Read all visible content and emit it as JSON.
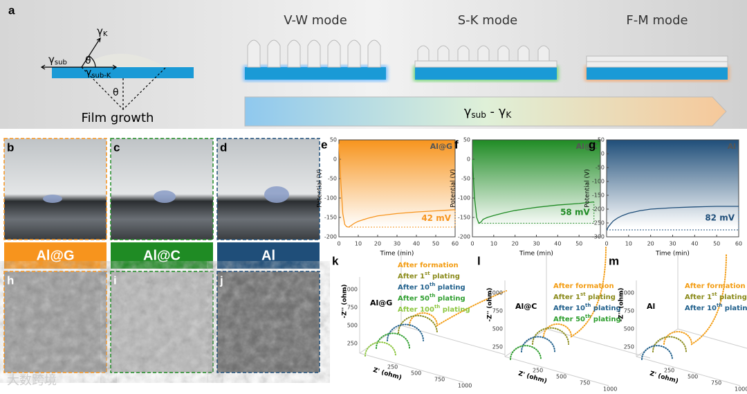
{
  "schematic": {
    "label": "a",
    "gamma_k": [
      "γ",
      "K"
    ],
    "gamma_sub": [
      "γ",
      "sub"
    ],
    "theta": "θ",
    "gamma_sub_k": [
      "γ",
      "sub-K"
    ],
    "caption": "Film growth",
    "modes": [
      "V-W mode",
      "S-K mode",
      "F-M mode"
    ],
    "arrow": [
      "γ",
      "sub",
      " - γ",
      "K"
    ]
  },
  "photos": [
    {
      "label": "b",
      "name": "Al@G",
      "color": "#f7941d"
    },
    {
      "label": "c",
      "name": "Al@C",
      "color": "#1f8b24"
    },
    {
      "label": "d",
      "name": "Al",
      "color": "#1f4e79"
    }
  ],
  "sem_labels": [
    "h",
    "i",
    "j"
  ],
  "chart_data": [
    {
      "type": "line",
      "panel": "e",
      "x_label": "Time (min)",
      "y_label": "Potential (V)",
      "annotation": "42 mV",
      "xlim": [
        0,
        60
      ],
      "xticks": [
        0,
        10,
        20,
        30,
        40,
        50,
        60
      ],
      "ylim": [
        -200,
        50
      ],
      "yticks": [
        50,
        0,
        -50,
        -100,
        -150,
        -200
      ],
      "series": [
        {
          "name": "Al@G",
          "color": "#f7941d",
          "x": [
            0,
            1,
            2,
            3,
            4,
            5,
            6,
            8,
            10,
            15,
            20,
            30,
            40,
            50,
            60
          ],
          "values": [
            40,
            -60,
            -140,
            -168,
            -174,
            -175,
            -172,
            -165,
            -160,
            -152,
            -146,
            -140,
            -136,
            -133,
            -130
          ]
        }
      ]
    },
    {
      "type": "line",
      "panel": "f",
      "x_label": "Time (min)",
      "y_label": "Potential (V)",
      "annotation": "58 mV",
      "xlim": [
        0,
        60
      ],
      "xticks": [
        0,
        10,
        20,
        30,
        40,
        50
      ],
      "ylim": [
        -200,
        50
      ],
      "yticks": [
        50,
        0,
        -50,
        -100,
        -150,
        -200
      ],
      "series": [
        {
          "name": "Al@C",
          "color": "#1f8b24",
          "x": [
            0,
            1,
            2,
            3,
            4,
            5,
            7,
            10,
            15,
            20,
            30,
            40,
            50,
            57
          ],
          "values": [
            0,
            -100,
            -150,
            -165,
            -162,
            -155,
            -150,
            -145,
            -138,
            -132,
            -124,
            -118,
            -114,
            -110
          ]
        }
      ]
    },
    {
      "type": "line",
      "panel": "g",
      "x_label": "Time (min)",
      "y_label": "Potential (V)",
      "annotation": "82 mV",
      "xlim": [
        0,
        60
      ],
      "xticks": [
        0,
        10,
        20,
        30,
        40,
        50,
        60
      ],
      "ylim": [
        -300,
        50
      ],
      "yticks": [
        50,
        0,
        -50,
        -100,
        -150,
        -200,
        -250,
        -300
      ],
      "series": [
        {
          "name": "Al",
          "color": "#1f4e79",
          "x": [
            0,
            1,
            2,
            3,
            5,
            7,
            10,
            15,
            20,
            30,
            40,
            50,
            60
          ],
          "values": [
            -275,
            -262,
            -252,
            -243,
            -232,
            -224,
            -215,
            -206,
            -200,
            -195,
            -192,
            -190,
            -190
          ]
        }
      ]
    }
  ],
  "nyquist": [
    {
      "panel": "k",
      "title": "Al@G",
      "z_label": "-Z'' (ohm)",
      "x_label": "Z' (ohm)",
      "zticks": [
        250,
        500,
        750,
        1000
      ],
      "xticks": [
        250,
        500,
        750,
        1000
      ],
      "legend": [
        [
          "After formation"
        ],
        [
          "After 1",
          "st",
          " plating"
        ],
        [
          "After 10",
          "th",
          " plating"
        ],
        [
          "After 50",
          "th",
          " plating"
        ],
        [
          "After 100",
          "th",
          " plating"
        ]
      ]
    },
    {
      "panel": "l",
      "title": "Al@C",
      "z_label": "-Z'' (ohm)",
      "x_label": "Z' (ohm)",
      "zticks": [
        250,
        500,
        750,
        1000
      ],
      "xticks": [
        250,
        500,
        750,
        1000
      ],
      "legend": [
        [
          "After formation"
        ],
        [
          "After 1",
          "st",
          " plating"
        ],
        [
          "After 10",
          "th",
          " plating"
        ],
        [
          "After 50",
          "th",
          " plating"
        ]
      ]
    },
    {
      "panel": "m",
      "title": "Al",
      "z_label": "-Z'' (ohm)",
      "x_label": "Z' (ohm)",
      "zticks": [
        250,
        500,
        750,
        1000
      ],
      "xticks": [
        250,
        500,
        750,
        1000
      ],
      "legend": [
        [
          "After formation"
        ],
        [
          "After 1",
          "st",
          " plating"
        ],
        [
          "After 10",
          "th",
          " plating"
        ]
      ]
    }
  ],
  "watermark": "大数跨境"
}
